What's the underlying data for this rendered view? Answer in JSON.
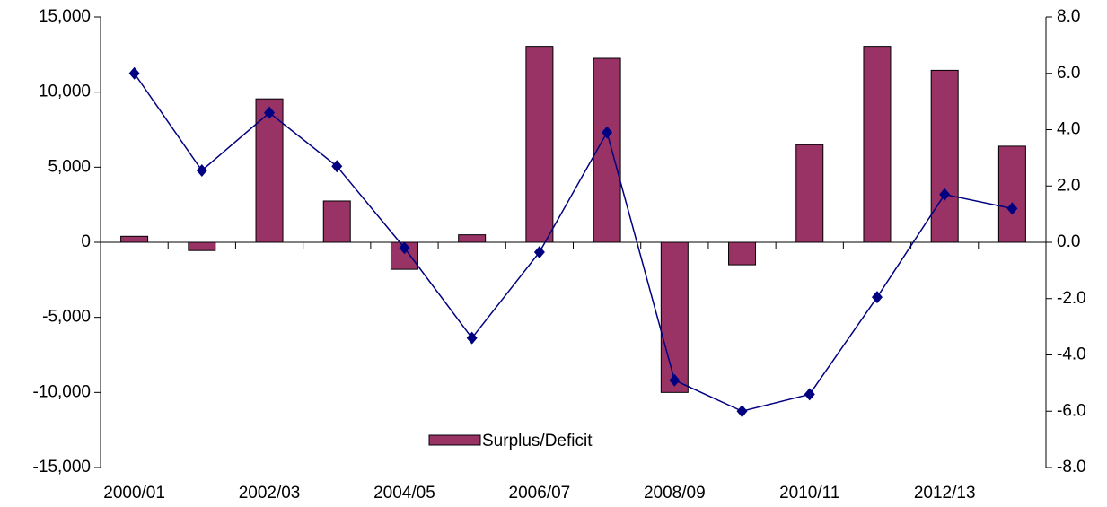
{
  "chart_data": {
    "type": "bar",
    "categories": [
      "2000/01",
      null,
      "2002/03",
      null,
      "2004/05",
      null,
      "2006/07",
      null,
      "2008/09",
      null,
      "2010/11",
      null,
      "2012/13",
      null
    ],
    "series": [
      {
        "name": "Surplus/Deficit",
        "type": "bar",
        "color": "#993366",
        "values": [
          400,
          -550,
          9550,
          2750,
          -1800,
          500,
          13050,
          12250,
          -10000,
          -1500,
          6500,
          13050,
          11450,
          6400
        ]
      },
      {
        "type": "line",
        "axis": "y2",
        "color": "#000080",
        "values": [
          6.0,
          2.55,
          4.6,
          2.7,
          -0.2,
          -3.4,
          -0.35,
          3.9,
          -4.9,
          -6.0,
          -5.4,
          -1.95,
          1.7,
          1.2
        ]
      }
    ],
    "ylim": [
      -15000,
      15000
    ],
    "yticks": [
      {
        "value": -15000,
        "label": "-15,000"
      },
      {
        "value": -10000,
        "label": "-10,000"
      },
      {
        "value": -5000,
        "label": "-5,000"
      },
      0,
      {
        "value": 5000,
        "label": "5,000"
      },
      {
        "value": 10000,
        "label": "10,000"
      },
      {
        "value": 15000,
        "label": "15,000"
      }
    ],
    "y2lim": [
      -8,
      8
    ],
    "y2ticks": [
      {
        "value": -8,
        "label": "-8.0"
      },
      {
        "value": -6,
        "label": "-6.0"
      },
      {
        "value": -4,
        "label": "-4.0"
      },
      {
        "value": -2,
        "label": "-2.0"
      },
      {
        "value": 0,
        "label": "0.0"
      },
      {
        "value": 2,
        "label": "2.0"
      },
      {
        "value": 4,
        "label": "4.0"
      },
      {
        "value": 6,
        "label": "6.0"
      },
      {
        "value": 8,
        "label": "8.0"
      }
    ],
    "legend": "bottom-center"
  }
}
